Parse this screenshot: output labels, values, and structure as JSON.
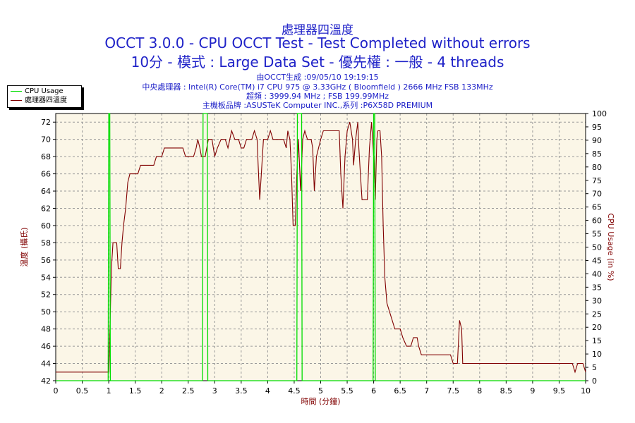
{
  "header": {
    "title": "處理器四溫度",
    "subtitle1": "OCCT 3.0.0 - CPU OCCT Test - Test Completed without errors",
    "subtitle2": "10分 - 模式 : Large Data Set - 優先權 : 一般 - 4 threads"
  },
  "info": {
    "line1": "由OCCT生成 :09/05/10 19:19:15",
    "line2": "中央處理器 : Intel(R) Core(TM) i7 CPU 975 @ 3.33GHz ( Bloomfield ) 2666 MHz FSB 133MHz",
    "line3": "超頻 : 3999.94 MHz ; FSB 199.99MHz",
    "line4": "主機板品牌 :ASUSTeK Computer INC.,系列 :P6X58D PREMIUM"
  },
  "legend": {
    "cpu_usage": "CPU Usage",
    "temp": "處理器四溫度"
  },
  "colors": {
    "background": "#ffffff",
    "plot_bg": "#fbf6e7",
    "temp_line": "#800000",
    "cpu_line": "#00dd00",
    "title": "#1f22c8",
    "axis_label": "#800000"
  },
  "chart_data": {
    "type": "line",
    "xlabel": "時間 (分鐘)",
    "ylabel_left": "溫度 (攝氏)",
    "ylabel_right": "CPU Usage (in %)",
    "xlim": [
      0,
      10
    ],
    "ylim_left": [
      42,
      73
    ],
    "ylim_right": [
      0,
      100
    ],
    "x_ticks": [
      "0",
      "0.5",
      "1",
      "1.5",
      "2",
      "2.5",
      "3",
      "3.5",
      "4",
      "4.5",
      "5",
      "5.5",
      "6",
      "6.5",
      "7",
      "7.5",
      "8",
      "8.5",
      "9",
      "9.5",
      "10"
    ],
    "y_left_ticks": [
      "42",
      "44",
      "46",
      "48",
      "50",
      "52",
      "54",
      "56",
      "58",
      "60",
      "62",
      "64",
      "66",
      "68",
      "70",
      "72"
    ],
    "y_right_ticks": [
      "0",
      "5",
      "10",
      "15",
      "20",
      "25",
      "30",
      "35",
      "40",
      "45",
      "50",
      "55",
      "60",
      "65",
      "70",
      "75",
      "80",
      "85",
      "90",
      "95",
      "100"
    ],
    "grid": true,
    "series": [
      {
        "name": "處理器四溫度",
        "axis": "left",
        "points": [
          [
            0,
            43
          ],
          [
            1.0,
            43
          ],
          [
            1.01,
            45
          ],
          [
            1.05,
            55
          ],
          [
            1.08,
            58
          ],
          [
            1.15,
            58
          ],
          [
            1.18,
            55
          ],
          [
            1.22,
            55
          ],
          [
            1.25,
            58
          ],
          [
            1.28,
            60
          ],
          [
            1.32,
            62
          ],
          [
            1.36,
            65
          ],
          [
            1.4,
            66
          ],
          [
            1.55,
            66
          ],
          [
            1.6,
            67
          ],
          [
            1.85,
            67
          ],
          [
            1.9,
            68
          ],
          [
            2.0,
            68
          ],
          [
            2.05,
            69
          ],
          [
            2.4,
            69
          ],
          [
            2.45,
            68
          ],
          [
            2.6,
            68
          ],
          [
            2.65,
            69
          ],
          [
            2.68,
            70
          ],
          [
            2.72,
            69
          ],
          [
            2.75,
            68
          ],
          [
            2.82,
            68
          ],
          [
            2.88,
            70
          ],
          [
            2.95,
            70
          ],
          [
            3.0,
            68
          ],
          [
            3.05,
            69
          ],
          [
            3.12,
            70
          ],
          [
            3.2,
            70
          ],
          [
            3.25,
            69
          ],
          [
            3.32,
            71
          ],
          [
            3.38,
            70
          ],
          [
            3.45,
            70
          ],
          [
            3.5,
            69
          ],
          [
            3.55,
            69
          ],
          [
            3.6,
            70
          ],
          [
            3.7,
            70
          ],
          [
            3.75,
            71
          ],
          [
            3.8,
            70
          ],
          [
            3.82,
            67
          ],
          [
            3.85,
            63
          ],
          [
            3.88,
            66
          ],
          [
            3.92,
            70
          ],
          [
            4.0,
            70
          ],
          [
            4.05,
            71
          ],
          [
            4.1,
            70
          ],
          [
            4.3,
            70
          ],
          [
            4.35,
            69
          ],
          [
            4.38,
            71
          ],
          [
            4.42,
            70
          ],
          [
            4.45,
            66
          ],
          [
            4.48,
            60
          ],
          [
            4.52,
            60
          ],
          [
            4.55,
            66
          ],
          [
            4.58,
            70
          ],
          [
            4.62,
            64
          ],
          [
            4.66,
            70
          ],
          [
            4.7,
            71
          ],
          [
            4.75,
            70
          ],
          [
            4.82,
            70
          ],
          [
            4.85,
            69
          ],
          [
            4.88,
            64
          ],
          [
            4.92,
            68
          ],
          [
            4.96,
            69
          ],
          [
            5.0,
            70
          ],
          [
            5.05,
            71
          ],
          [
            5.35,
            71
          ],
          [
            5.38,
            66
          ],
          [
            5.42,
            62
          ],
          [
            5.46,
            68
          ],
          [
            5.5,
            71
          ],
          [
            5.55,
            72
          ],
          [
            5.6,
            70
          ],
          [
            5.62,
            67
          ],
          [
            5.66,
            70
          ],
          [
            5.7,
            72
          ],
          [
            5.72,
            69
          ],
          [
            5.75,
            66
          ],
          [
            5.78,
            63
          ],
          [
            5.82,
            63
          ],
          [
            5.88,
            63
          ],
          [
            5.92,
            69
          ],
          [
            5.96,
            72
          ],
          [
            6.0,
            68
          ],
          [
            6.03,
            63
          ],
          [
            6.06,
            70
          ],
          [
            6.08,
            71
          ],
          [
            6.12,
            71
          ],
          [
            6.15,
            68
          ],
          [
            6.18,
            60
          ],
          [
            6.21,
            54
          ],
          [
            6.25,
            51
          ],
          [
            6.3,
            50
          ],
          [
            6.35,
            49
          ],
          [
            6.4,
            48
          ],
          [
            6.5,
            48
          ],
          [
            6.55,
            47
          ],
          [
            6.62,
            46
          ],
          [
            6.7,
            46
          ],
          [
            6.75,
            47
          ],
          [
            6.82,
            47
          ],
          [
            6.85,
            46
          ],
          [
            6.9,
            45
          ],
          [
            7.0,
            45
          ],
          [
            7.45,
            45
          ],
          [
            7.5,
            44
          ],
          [
            7.58,
            44
          ],
          [
            7.62,
            49
          ],
          [
            7.66,
            48
          ],
          [
            7.68,
            44
          ],
          [
            7.72,
            44
          ],
          [
            9.75,
            44
          ],
          [
            9.8,
            43
          ],
          [
            9.85,
            44
          ],
          [
            9.95,
            44
          ],
          [
            10,
            43
          ]
        ]
      },
      {
        "name": "CPU Usage",
        "axis": "right",
        "points": [
          [
            0,
            0
          ],
          [
            0.99,
            0
          ],
          [
            1.0,
            100
          ],
          [
            1.02,
            100
          ],
          [
            1.03,
            0
          ],
          [
            2.77,
            0
          ],
          [
            2.78,
            100
          ],
          [
            2.86,
            100
          ],
          [
            2.87,
            0
          ],
          [
            4.55,
            0
          ],
          [
            4.56,
            100
          ],
          [
            4.64,
            100
          ],
          [
            4.65,
            0
          ],
          [
            5.99,
            0
          ],
          [
            6.0,
            100
          ],
          [
            6.02,
            100
          ],
          [
            6.03,
            0
          ],
          [
            10,
            0
          ]
        ]
      }
    ]
  }
}
